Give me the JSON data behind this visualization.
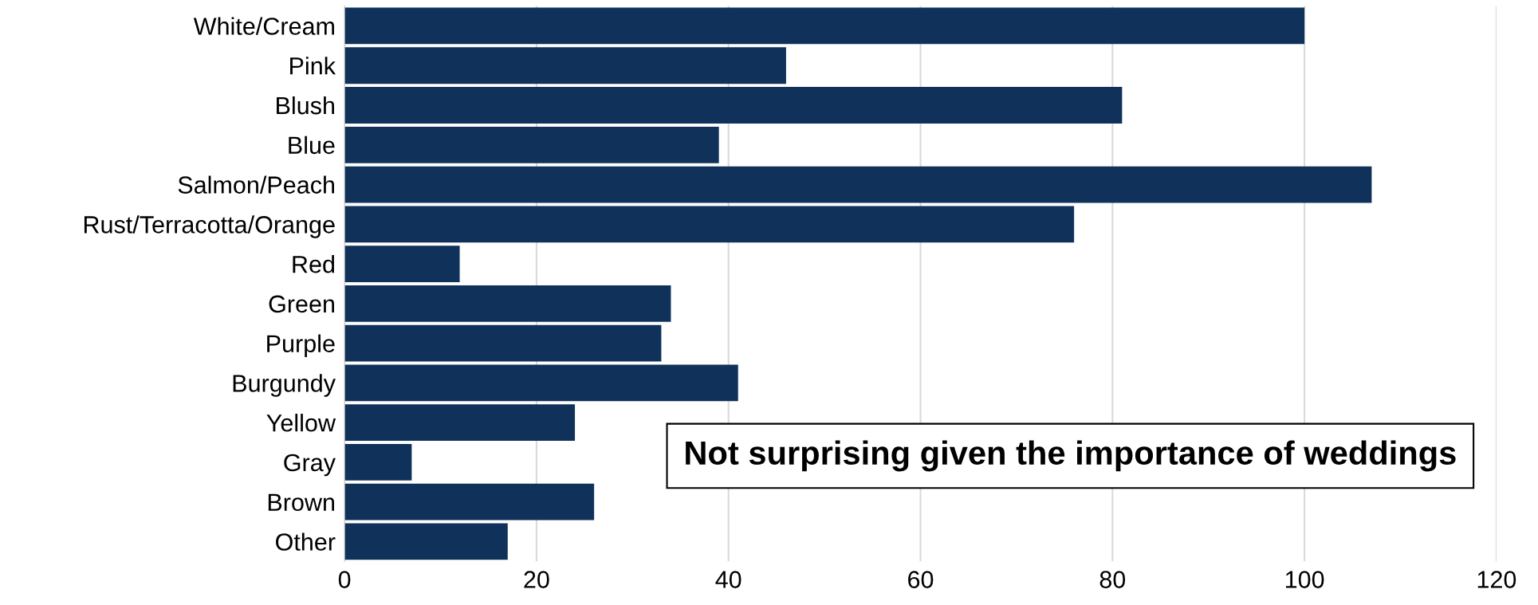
{
  "chart_data": {
    "type": "bar",
    "orientation": "horizontal",
    "categories": [
      "White/Cream",
      "Pink",
      "Blush",
      "Blue",
      "Salmon/Peach",
      "Rust/Terracotta/Orange",
      "Red",
      "Green",
      "Purple",
      "Burgundy",
      "Yellow",
      "Gray",
      "Brown",
      "Other"
    ],
    "values": [
      100,
      46,
      81,
      39,
      107,
      76,
      12,
      34,
      33,
      41,
      24,
      7,
      26,
      17
    ],
    "color": "#10325a",
    "xlim": [
      0,
      120
    ],
    "xticks": [
      0,
      20,
      40,
      60,
      80,
      100,
      120
    ],
    "grid": "x",
    "annotations": [
      "Not surprising given the importance of weddings"
    ]
  }
}
